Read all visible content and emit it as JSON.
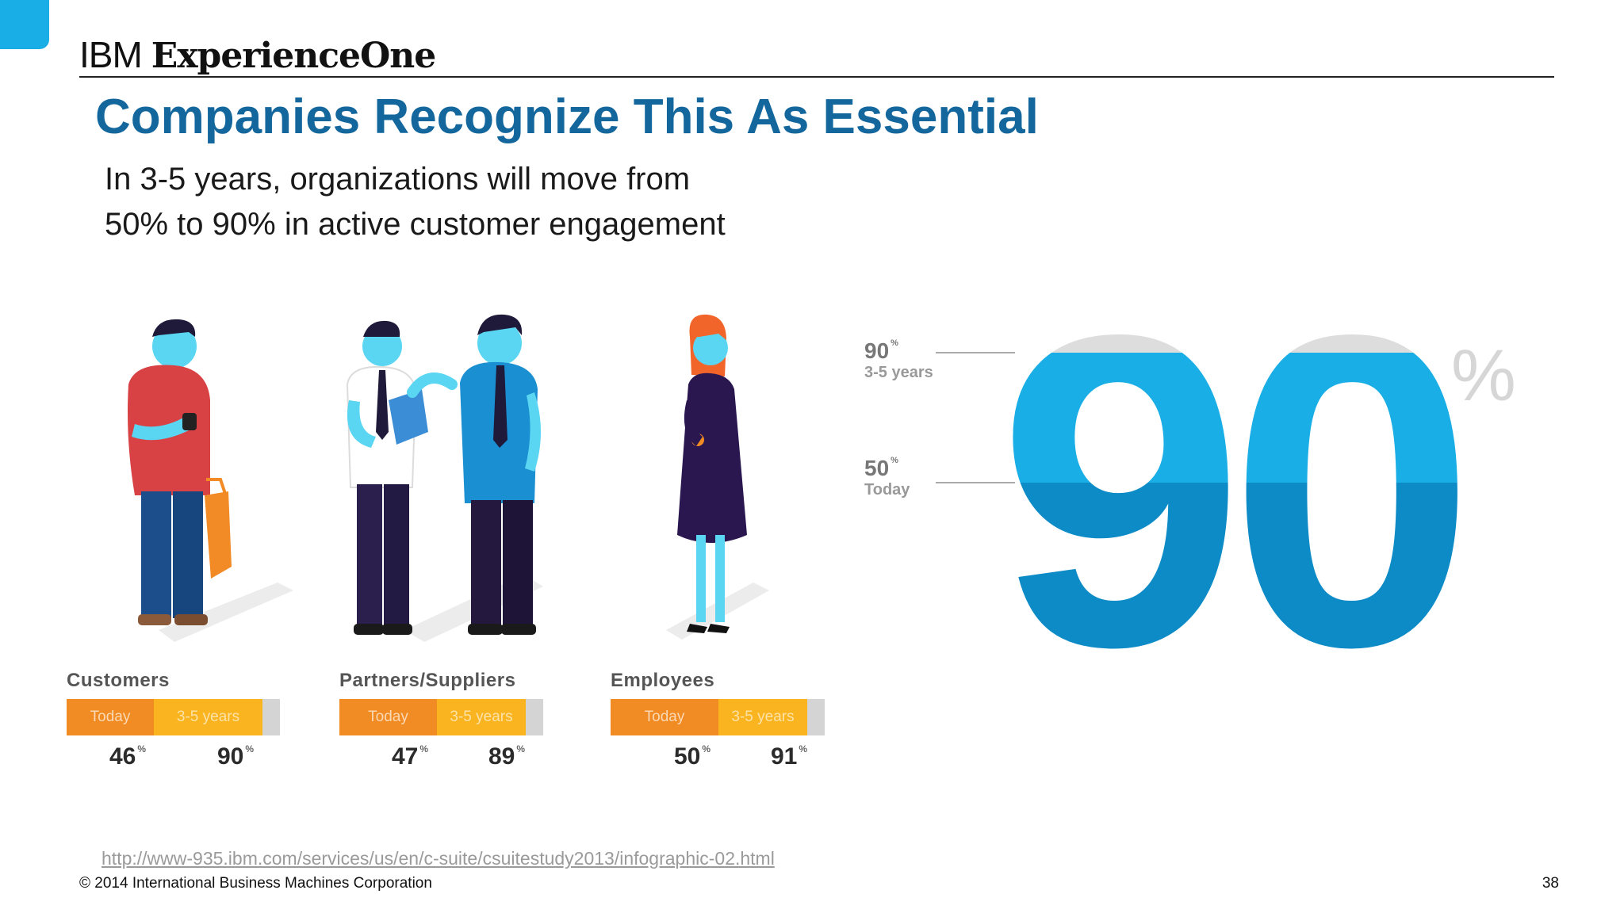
{
  "brand": {
    "ibm": "IBM",
    "product": "ExperienceOne"
  },
  "slide": {
    "title": "Companies Recognize This As Essential",
    "subtitle_lines": [
      "In 3-5 years, organizations will move from",
      "50% to 90% in active customer engagement"
    ]
  },
  "groups": [
    {
      "label": "Customers",
      "today_label": "Today",
      "future_label": "3-5 years",
      "today": "46",
      "future": "90",
      "pct": "%"
    },
    {
      "label": "Partners/Suppliers",
      "today_label": "Today",
      "future_label": "3-5 years",
      "today": "47",
      "future": "89",
      "pct": "%"
    },
    {
      "label": "Employees",
      "today_label": "Today",
      "future_label": "3-5 years",
      "today": "50",
      "future": "91",
      "pct": "%"
    }
  ],
  "big_figure": {
    "digits": "90",
    "percent_sign": "%",
    "top_marker": {
      "value": "90",
      "pct": "%",
      "label": "3-5 years"
    },
    "bottom_marker": {
      "value": "50",
      "pct": "%",
      "label": "Today"
    },
    "fill_today_fraction": 0.5,
    "fill_future_fraction": 0.9
  },
  "colors": {
    "title": "#13679d",
    "accent": "#1aaee6",
    "dark_blue": "#0d8bc7",
    "today_orange": "#f18b23",
    "future_yellow": "#f9b420",
    "grey_cap": "#dddddd"
  },
  "footer": {
    "source_url": "http://www-935.ibm.com/services/us/en/c-suite/csuitestudy2013/infographic-02.html",
    "copyright": "© 2014 International Business Machines Corporation",
    "page_number": "38"
  }
}
